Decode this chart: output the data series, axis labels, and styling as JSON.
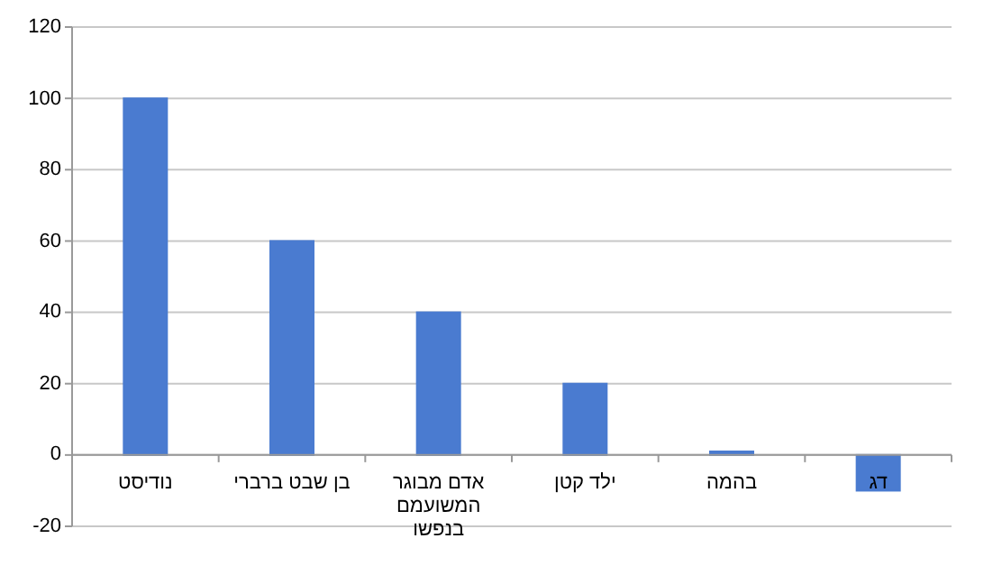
{
  "chart_data": {
    "type": "bar",
    "categories": [
      "נודיסט",
      "בן שבט ברברי",
      "אדם מבוגר המשועמם בנפשו",
      "ילד קטן",
      "בהמה",
      "דג"
    ],
    "values": [
      100,
      60,
      40,
      20,
      1,
      -10
    ],
    "color": "#4a7bd0",
    "ylim": [
      -20,
      120
    ],
    "yticks": [
      -20,
      0,
      20,
      40,
      60,
      80,
      100,
      120
    ],
    "grid": "y"
  }
}
